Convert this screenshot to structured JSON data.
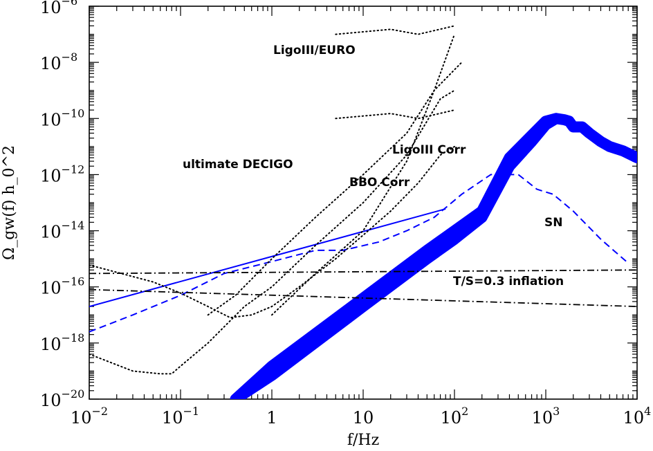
{
  "chart_data": {
    "type": "line",
    "xscale": "log",
    "yscale": "log",
    "xlim": [
      0.01,
      10000
    ],
    "ylim": [
      1e-20,
      1e-06
    ],
    "xlabel": "f/Hz",
    "ylabel": "Ω_gw(f) h_0^2",
    "x_ticks": [
      {
        "base": "10",
        "exp": "−2"
      },
      {
        "base": "10",
        "exp": "−1"
      },
      {
        "base": "1",
        "exp": ""
      },
      {
        "base": "10",
        "exp": ""
      },
      {
        "base": "10",
        "exp": "2"
      },
      {
        "base": "10",
        "exp": "3"
      },
      {
        "base": "10",
        "exp": "4"
      }
    ],
    "y_ticks": [
      {
        "base": "10",
        "exp": "−20"
      },
      {
        "base": "10",
        "exp": "−18"
      },
      {
        "base": "10",
        "exp": "−16"
      },
      {
        "base": "10",
        "exp": "−14"
      },
      {
        "base": "10",
        "exp": "−12"
      },
      {
        "base": "10",
        "exp": "−10"
      },
      {
        "base": "10",
        "exp": "−8"
      },
      {
        "base": "10",
        "exp": "−6"
      }
    ],
    "annotations": {
      "ligo_euro": "LigoIII/EURO",
      "ligo_corr": "LigoIII Corr",
      "decigo": "ultimate DECIGO",
      "bbo": "BBO Corr",
      "sn": "SN",
      "inflation": "T/S=0.3 inflation"
    },
    "colors": {
      "blue": "#0000ff",
      "black": "#000000"
    },
    "series": [
      {
        "style": "blue-band",
        "x": [
          0.4,
          1,
          10,
          50,
          100,
          200,
          400,
          700,
          1000,
          1300,
          1600,
          1800,
          2000,
          2500,
          3000,
          4000,
          5000,
          7000,
          10000
        ],
        "y": [
          1e-20,
          1.5e-19,
          4e-17,
          2e-15,
          1e-14,
          5e-14,
          4e-12,
          2.5e-11,
          8e-11,
          1e-10,
          9e-11,
          8e-11,
          5e-11,
          5e-11,
          3e-11,
          1.5e-11,
          1e-11,
          7e-12,
          4e-12
        ],
        "y_lower": [
          1e-20,
          7e-20,
          2e-17,
          1e-15,
          5e-15,
          3e-14,
          2e-12,
          1.5e-11,
          6e-11,
          1e-10,
          9e-11,
          8e-11,
          5e-11,
          5e-11,
          3e-11,
          1.5e-11,
          1e-11,
          7e-12,
          4e-12
        ]
      },
      {
        "style": "blue-solid",
        "x": [
          0.01,
          80
        ],
        "y": [
          2e-17,
          6e-14
        ]
      },
      {
        "style": "blue-dashed",
        "x": [
          0.01,
          0.03,
          0.1,
          0.3,
          1,
          3,
          6,
          15,
          30,
          60,
          120,
          250,
          500,
          800,
          1200,
          2000,
          4000,
          8000
        ],
        "y": [
          2.5e-18,
          1e-17,
          5e-17,
          3e-16,
          8e-16,
          2e-15,
          2e-15,
          4e-15,
          1e-14,
          3e-14,
          2e-13,
          1e-12,
          1e-12,
          3e-13,
          2e-13,
          5e-14,
          5e-15,
          7e-16
        ]
      },
      {
        "style": "dashdot",
        "x": [
          0.01,
          10000
        ],
        "y": [
          3e-16,
          4e-16
        ]
      },
      {
        "style": "dashdot",
        "x": [
          0.01,
          10000
        ],
        "y": [
          8e-17,
          2e-17
        ]
      },
      {
        "style": "dotted",
        "x": [
          0.01,
          0.05,
          0.1,
          0.2,
          0.35,
          0.6,
          1,
          2,
          5,
          10,
          20,
          40,
          70,
          100
        ],
        "y": [
          6e-16,
          1.5e-16,
          6e-17,
          2e-17,
          8e-18,
          1e-17,
          2e-17,
          1e-16,
          1e-15,
          7e-15,
          5e-14,
          5e-13,
          5e-12,
          1e-11
        ]
      },
      {
        "style": "dotted",
        "x": [
          0.01,
          0.03,
          0.06,
          0.08,
          0.1,
          0.2,
          0.5,
          1,
          3,
          10,
          30,
          70,
          100
        ],
        "y": [
          4e-19,
          1e-19,
          8e-20,
          8e-20,
          1.5e-19,
          1e-18,
          2e-17,
          1e-16,
          3e-15,
          1e-13,
          5e-12,
          5e-10,
          1e-09
        ]
      },
      {
        "style": "dotted",
        "x": [
          0.2,
          0.4,
          1,
          3,
          10,
          30,
          60,
          120
        ],
        "y": [
          1e-17,
          5e-17,
          1e-15,
          3e-14,
          1e-12,
          3e-11,
          1e-09,
          1e-08
        ]
      },
      {
        "style": "dotted",
        "x": [
          5,
          20,
          40,
          100
        ],
        "y": [
          1e-10,
          1.5e-10,
          1e-10,
          2e-10
        ]
      },
      {
        "style": "dotted",
        "x": [
          5,
          20,
          40,
          100
        ],
        "y": [
          1e-07,
          1.5e-07,
          1e-07,
          2e-07
        ]
      },
      {
        "style": "dotted",
        "x": [
          1,
          3,
          10,
          30,
          60,
          100
        ],
        "y": [
          1e-17,
          3e-16,
          1e-14,
          3e-12,
          1e-09,
          1e-07
        ]
      }
    ]
  }
}
